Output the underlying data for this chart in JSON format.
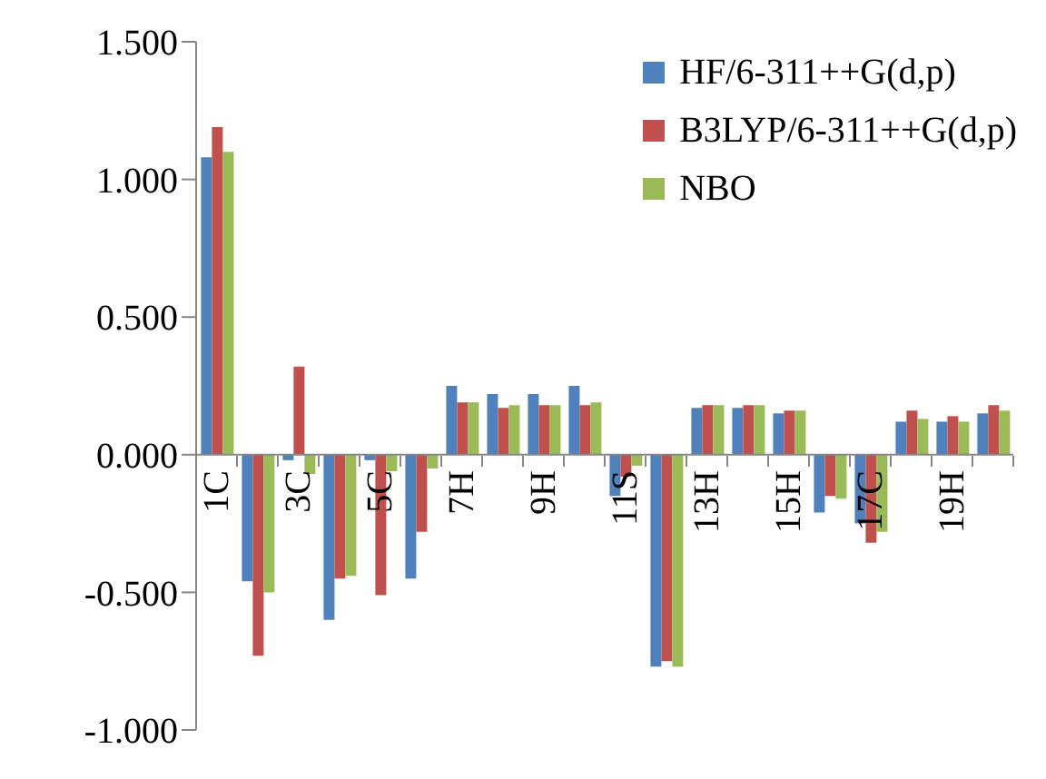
{
  "chart_data": {
    "type": "bar",
    "categories": [
      "1C",
      null,
      "3C",
      null,
      "5C",
      null,
      "7H",
      null,
      "9H",
      null,
      "11S",
      null,
      "13H",
      null,
      "15H",
      null,
      "17C",
      null,
      "19H",
      null
    ],
    "series": [
      {
        "name": "HF/6-311++G(d,p)",
        "color": "#4f81bd",
        "values": [
          1.08,
          -0.46,
          -0.02,
          -0.6,
          -0.02,
          -0.45,
          0.25,
          0.22,
          0.22,
          0.25,
          -0.15,
          -0.77,
          0.17,
          0.17,
          0.15,
          -0.21,
          -0.25,
          0.12,
          0.12,
          0.15
        ]
      },
      {
        "name": "B3LYP/6-311++G(d,p)",
        "color": "#c0504d",
        "values": [
          1.19,
          -0.73,
          0.32,
          -0.45,
          -0.51,
          -0.28,
          0.19,
          0.17,
          0.18,
          0.18,
          -0.08,
          -0.75,
          0.18,
          0.18,
          0.16,
          -0.15,
          -0.32,
          0.16,
          0.14,
          0.18
        ]
      },
      {
        "name": "NBO",
        "color": "#9bbb59",
        "values": [
          1.1,
          -0.5,
          -0.07,
          -0.44,
          -0.06,
          -0.05,
          0.19,
          0.18,
          0.18,
          0.19,
          -0.04,
          -0.77,
          0.18,
          0.18,
          0.16,
          -0.16,
          -0.28,
          0.13,
          0.12,
          0.16
        ]
      }
    ],
    "ylim": [
      -1,
      1.5
    ],
    "yticks": [
      {
        "value": -1,
        "label": "-1.000"
      },
      {
        "value": -0.5,
        "label": "-0.500"
      },
      {
        "value": 0,
        "label": "0.000"
      },
      {
        "value": 0.5,
        "label": "0.500"
      },
      {
        "value": 1,
        "label": "1.000"
      },
      {
        "value": 1.5,
        "label": "1.500"
      }
    ],
    "legend": "top right",
    "grid": false
  }
}
